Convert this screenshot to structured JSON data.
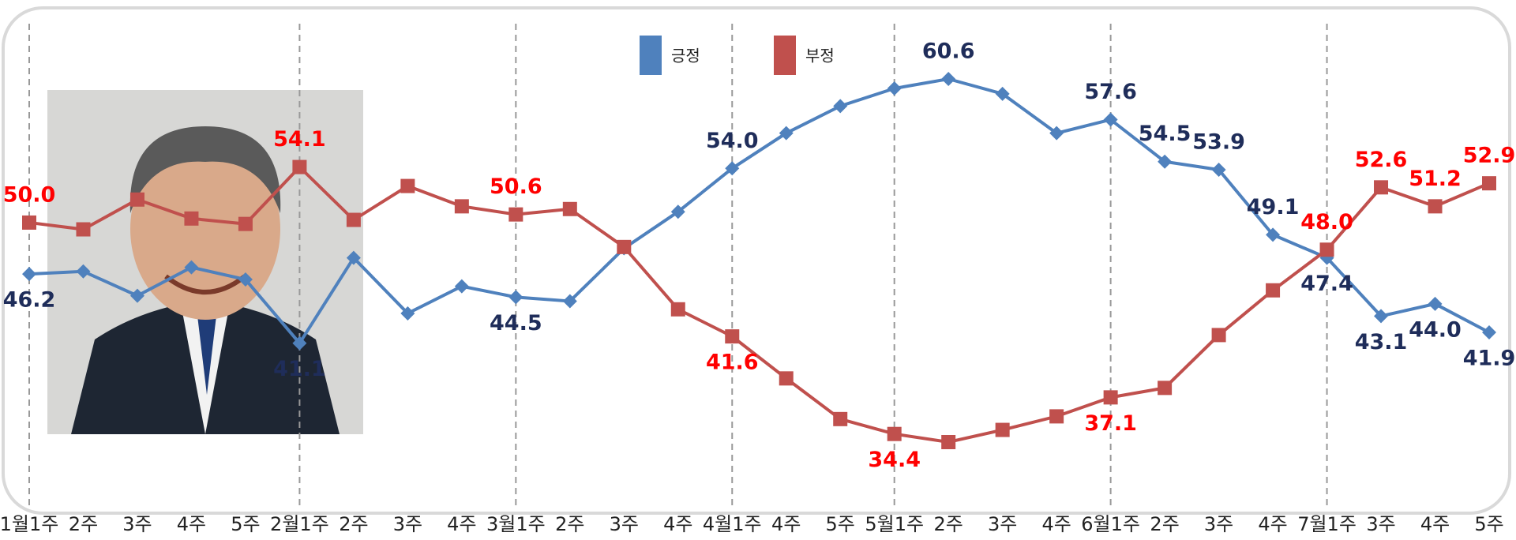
{
  "chart_data": {
    "type": "line",
    "categories": [
      "1월1주",
      "2주",
      "3주",
      "4주",
      "5주",
      "2월1주",
      "2주",
      "3주",
      "4주",
      "3월1주",
      "2주",
      "3주",
      "4주",
      "4월1주",
      "4주",
      "5주",
      "5월1주",
      "2주",
      "3주",
      "4주",
      "6월1주",
      "2주",
      "3주",
      "4주",
      "7월1주",
      "3주",
      "4주",
      "5주"
    ],
    "month_starts": [
      0,
      5,
      9,
      13,
      16,
      20,
      24
    ],
    "legend": "top",
    "series": [
      {
        "name": "긍정",
        "color": "#4f81bd",
        "label_color": "#1f2d5a",
        "values": [
          46.2,
          46.4,
          44.6,
          46.7,
          45.8,
          41.1,
          47.4,
          43.3,
          45.3,
          44.5,
          44.2,
          48.1,
          50.8,
          54.0,
          56.6,
          58.6,
          59.9,
          60.6,
          59.5,
          56.6,
          57.6,
          54.5,
          53.9,
          49.1,
          47.4,
          43.1,
          44.0,
          41.9
        ],
        "value_labels": [
          "46.2",
          null,
          null,
          null,
          null,
          "41.1",
          null,
          null,
          null,
          "44.5",
          null,
          null,
          null,
          "54.0",
          null,
          null,
          null,
          "60.6",
          null,
          null,
          "57.6",
          "54.5",
          "53.9",
          "49.1",
          "47.4",
          "43.1",
          "44.0",
          "41.9"
        ]
      },
      {
        "name": "부정",
        "color": "#c0504d",
        "label_color": "#ff0000",
        "values": [
          50.0,
          49.5,
          51.7,
          50.3,
          49.9,
          54.1,
          50.2,
          52.7,
          51.2,
          50.6,
          51.0,
          48.2,
          43.6,
          41.6,
          38.5,
          35.5,
          34.4,
          33.8,
          34.7,
          35.7,
          37.1,
          37.8,
          41.7,
          45.0,
          48.0,
          52.6,
          51.2,
          52.9
        ],
        "value_labels": [
          "50.0",
          null,
          null,
          null,
          null,
          "54.1",
          null,
          null,
          null,
          "50.6",
          null,
          null,
          null,
          "41.6",
          null,
          null,
          "34.4",
          null,
          null,
          null,
          "37.1",
          null,
          null,
          null,
          "48.0",
          "52.6",
          "51.2",
          "52.9"
        ]
      }
    ]
  }
}
